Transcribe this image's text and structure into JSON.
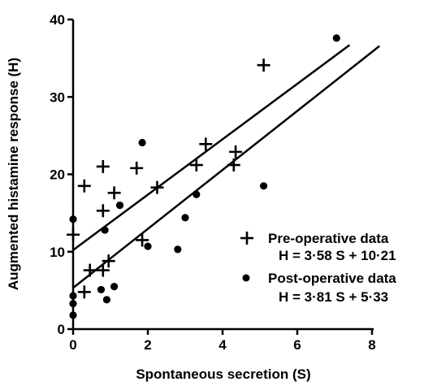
{
  "chart_data": {
    "type": "scatter",
    "xlabel": "Spontaneous secretion (S)",
    "ylabel": "Augmented histamine response (H)",
    "xlim": [
      0,
      8
    ],
    "ylim": [
      0,
      40
    ],
    "xticks": [
      "0",
      "2",
      "4",
      "6",
      "8"
    ],
    "yticks": [
      "0",
      "10",
      "20",
      "30",
      "40"
    ],
    "grid": false,
    "legend_position": "bottom-right",
    "series": [
      {
        "name": "Pre-operative data",
        "equation": "H = 3·58 S + 10·21",
        "marker": "plus",
        "fit": {
          "slope": 3.58,
          "intercept": 10.21,
          "x_range": [
            0,
            7.4
          ]
        },
        "points": [
          [
            0.0,
            12.2
          ],
          [
            0.3,
            18.5
          ],
          [
            0.3,
            4.8
          ],
          [
            0.45,
            7.6
          ],
          [
            0.8,
            21.0
          ],
          [
            0.8,
            15.3
          ],
          [
            0.8,
            7.6
          ],
          [
            0.95,
            8.8
          ],
          [
            1.1,
            17.6
          ],
          [
            1.7,
            20.8
          ],
          [
            1.85,
            11.5
          ],
          [
            2.25,
            18.3
          ],
          [
            3.3,
            21.2
          ],
          [
            3.55,
            23.9
          ],
          [
            4.3,
            21.2
          ],
          [
            4.35,
            22.9
          ],
          [
            5.1,
            34.1
          ]
        ]
      },
      {
        "name": "Post-operative data",
        "equation": "H = 3·81 S + 5·33",
        "marker": "dot",
        "fit": {
          "slope": 3.81,
          "intercept": 5.33,
          "x_range": [
            0,
            8.2
          ]
        },
        "points": [
          [
            0.0,
            14.2
          ],
          [
            0.0,
            4.3
          ],
          [
            0.0,
            3.3
          ],
          [
            0.0,
            1.8
          ],
          [
            0.75,
            5.1
          ],
          [
            0.85,
            12.8
          ],
          [
            0.9,
            3.8
          ],
          [
            1.1,
            5.5
          ],
          [
            1.25,
            16.0
          ],
          [
            1.85,
            24.1
          ],
          [
            2.0,
            10.7
          ],
          [
            2.8,
            10.3
          ],
          [
            3.0,
            14.4
          ],
          [
            3.3,
            17.4
          ],
          [
            5.1,
            18.5
          ],
          [
            7.05,
            37.6
          ]
        ]
      }
    ]
  }
}
